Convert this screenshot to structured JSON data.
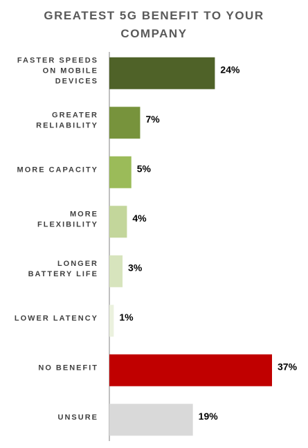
{
  "chart_data": {
    "type": "bar",
    "orientation": "horizontal",
    "title": "GREATEST 5G BENEFIT TO YOUR COMPANY",
    "title_lines": [
      "GREATEST 5G BENEFIT TO YOUR",
      "COMPANY"
    ],
    "categories": [
      "FASTER SPEEDS ON MOBILE DEVICES",
      "GREATER RELIABILITY",
      "MORE CAPACITY",
      "MORE FLEXIBILITY",
      "LONGER BATTERY LIFE",
      "LOWER LATENCY",
      "NO BENEFIT",
      "UNSURE"
    ],
    "category_lines": [
      [
        "FASTER SPEEDS",
        "ON MOBILE",
        "DEVICES"
      ],
      [
        "GREATER",
        "RELIABILITY"
      ],
      [
        "MORE CAPACITY"
      ],
      [
        "MORE",
        "FLEXIBILITY"
      ],
      [
        "LONGER",
        "BATTERY LIFE"
      ],
      [
        "LOWER LATENCY"
      ],
      [
        "NO BENEFIT"
      ],
      [
        "UNSURE"
      ]
    ],
    "values": [
      24,
      7,
      5,
      4,
      3,
      1,
      37,
      19
    ],
    "value_labels": [
      "24%",
      "7%",
      "5%",
      "4%",
      "3%",
      "1%",
      "37%",
      "19%"
    ],
    "unit": "%",
    "colors": [
      "#4f6228",
      "#77933c",
      "#9bbb59",
      "#c3d69b",
      "#d7e4bd",
      "#ebf1de",
      "#c00000",
      "#d9d9d9"
    ],
    "xlim": [
      0,
      37
    ],
    "grid": false,
    "legend": "none"
  }
}
